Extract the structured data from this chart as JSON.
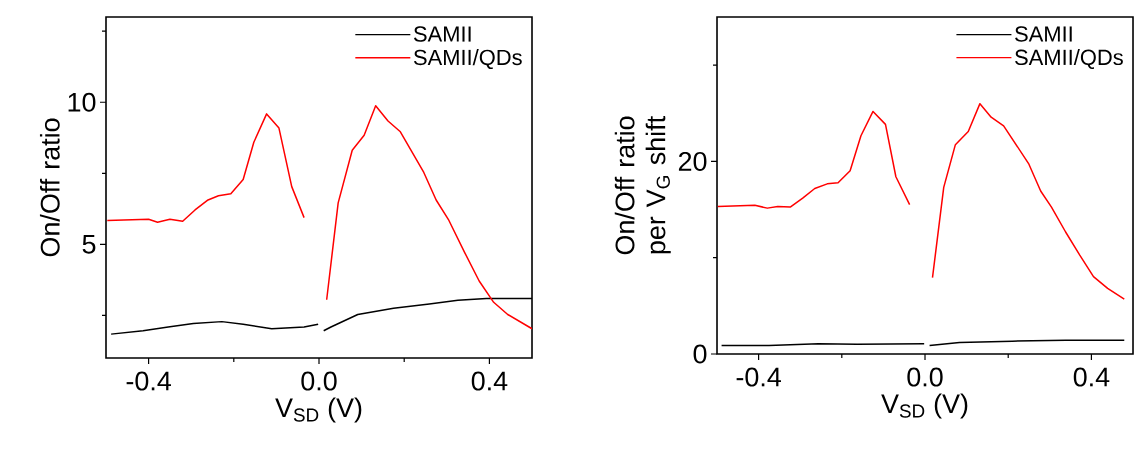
{
  "chart_data": [
    {
      "type": "line",
      "xlabel": "V$_{SD}$ (V)",
      "ylabel": "On/Off ratio",
      "xlim": [
        -0.5,
        0.5
      ],
      "ylim": [
        1,
        13
      ],
      "xticks": [
        {
          "value": -0.4,
          "label": "-0.4"
        },
        {
          "value": -0.2,
          "label": null
        },
        {
          "value": 0.0,
          "label": "0.0"
        },
        {
          "value": 0.2,
          "label": null
        },
        {
          "value": 0.4,
          "label": "0.4"
        }
      ],
      "yticks": [
        {
          "value": 2.5,
          "label": null
        },
        {
          "value": 5,
          "label": "5"
        },
        {
          "value": 7.5,
          "label": null
        },
        {
          "value": 10,
          "label": "10"
        },
        {
          "value": 12.5,
          "label": null
        }
      ],
      "legend": "top right",
      "series": [
        {
          "name": "SAMII",
          "color": "#000000",
          "x": [
            -0.488,
            -0.413,
            -0.354,
            -0.295,
            -0.228,
            -0.178,
            -0.111,
            -0.035,
            -0.002,
            0.005,
            0.011,
            0.028,
            0.091,
            0.175,
            0.259,
            0.326,
            0.393,
            0.5
          ],
          "values": [
            1.84,
            1.96,
            2.09,
            2.21,
            2.28,
            2.19,
            2.03,
            2.09,
            2.19,
            null,
            1.96,
            2.09,
            2.53,
            2.75,
            2.9,
            3.03,
            3.09,
            3.09
          ]
        },
        {
          "name": "SAMII/QDs",
          "color": "#ff0000",
          "x": [
            -0.497,
            -0.4,
            -0.379,
            -0.35,
            -0.32,
            -0.291,
            -0.262,
            -0.236,
            -0.207,
            -0.178,
            -0.153,
            -0.123,
            -0.094,
            -0.064,
            -0.035,
            0.0,
            0.018,
            0.045,
            0.078,
            0.106,
            0.133,
            0.162,
            0.191,
            0.246,
            0.275,
            0.305,
            0.342,
            0.376,
            0.41,
            0.443,
            0.5
          ],
          "values": [
            5.84,
            5.88,
            5.78,
            5.88,
            5.81,
            6.21,
            6.55,
            6.71,
            6.78,
            7.28,
            8.59,
            9.59,
            9.09,
            7.03,
            5.94,
            null,
            3.05,
            6.46,
            8.31,
            8.84,
            9.88,
            9.34,
            8.96,
            7.53,
            6.56,
            5.84,
            4.71,
            3.71,
            2.96,
            2.53,
            2.03
          ]
        }
      ]
    },
    {
      "type": "line",
      "xlabel": "V$_{SD}$ (V)",
      "ylabel": "On/Off ratio per V$_{G}$ shift",
      "xlim": [
        -0.5,
        0.5
      ],
      "ylim": [
        0,
        35
      ],
      "xticks": [
        {
          "value": -0.4,
          "label": "-0.4"
        },
        {
          "value": -0.2,
          "label": null
        },
        {
          "value": 0.0,
          "label": "0.0"
        },
        {
          "value": 0.2,
          "label": null
        },
        {
          "value": 0.4,
          "label": "0.4"
        }
      ],
      "yticks": [
        0,
        {
          "value": 10,
          "label": null
        },
        20,
        {
          "value": 30,
          "label": null
        }
      ],
      "legend": "top right",
      "series": [
        {
          "name": "SAMII",
          "color": "#000000",
          "x": [
            -0.489,
            -0.375,
            -0.256,
            -0.163,
            -0.002,
            0.005,
            0.011,
            0.083,
            0.21,
            0.338,
            0.479
          ],
          "values": [
            0.89,
            0.89,
            1.07,
            1.0,
            1.07,
            null,
            0.89,
            1.19,
            1.33,
            1.44,
            1.44
          ]
        },
        {
          "name": "SAMII/QDs",
          "color": "#ff0000",
          "x": [
            -0.498,
            -0.409,
            -0.379,
            -0.354,
            -0.324,
            -0.294,
            -0.265,
            -0.235,
            -0.209,
            -0.18,
            -0.154,
            -0.125,
            -0.095,
            -0.07,
            -0.037,
            0.0,
            0.018,
            0.045,
            0.073,
            0.104,
            0.132,
            0.159,
            0.189,
            0.219,
            0.249,
            0.278,
            0.304,
            0.338,
            0.372,
            0.405,
            0.439,
            0.479
          ],
          "values": [
            15.33,
            15.44,
            15.15,
            15.33,
            15.26,
            16.19,
            17.19,
            17.67,
            17.78,
            19.04,
            22.67,
            25.19,
            23.85,
            18.41,
            15.52,
            null,
            7.93,
            17.3,
            21.74,
            23.11,
            26.0,
            24.59,
            23.7,
            21.74,
            19.78,
            16.93,
            15.26,
            12.67,
            10.26,
            8.04,
            6.81,
            5.7
          ]
        }
      ]
    }
  ]
}
